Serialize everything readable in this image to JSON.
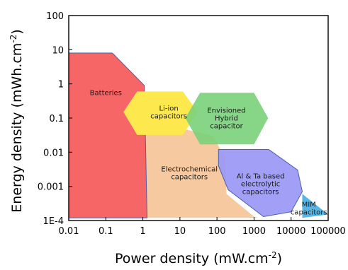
{
  "chart_data": {
    "type": "region",
    "title": "",
    "xlabel": "Power density (mW.cm",
    "xlabel_sup": "-2",
    "xlabel_end": ")",
    "ylabel": "Energy density (mWh.cm",
    "ylabel_sup": "-2",
    "ylabel_end": ")",
    "xscale": "log",
    "yscale": "log",
    "xlim": [
      0.01,
      100000
    ],
    "ylim": [
      0.0001,
      100
    ],
    "x_ticks": [
      {
        "value": 0.01,
        "label": "0.01"
      },
      {
        "value": 0.1,
        "label": "0.1"
      },
      {
        "value": 1,
        "label": "1"
      },
      {
        "value": 10,
        "label": "10"
      },
      {
        "value": 100,
        "label": "100"
      },
      {
        "value": 1000,
        "label": "1000"
      },
      {
        "value": 10000,
        "label": "10000"
      },
      {
        "value": 100000,
        "label": "100000"
      }
    ],
    "y_ticks": [
      {
        "value": 0.0001,
        "label": "1E-4"
      },
      {
        "value": 0.001,
        "label": "0.001"
      },
      {
        "value": 0.01,
        "label": "0.01"
      },
      {
        "value": 0.1,
        "label": "0.1"
      },
      {
        "value": 1,
        "label": "1"
      },
      {
        "value": 10,
        "label": "10"
      },
      {
        "value": 100,
        "label": "100"
      }
    ],
    "grid": false,
    "regions": [
      {
        "name": "Electrochemical capacitors",
        "label_lines": [
          "Electrochemical",
          "capacitors"
        ],
        "label_at": [
          18,
          0.0025
        ],
        "color": "#f6c9a0",
        "stroke": "none",
        "polygon": [
          [
            1,
            0.09
          ],
          [
            80,
            0.03
          ],
          [
            170,
            0.006
          ],
          [
            180,
            0.0006
          ],
          [
            1000,
            0.00013
          ],
          [
            1300,
            0.00012
          ],
          [
            1,
            0.00012
          ]
        ]
      },
      {
        "name": "Batteries",
        "label_lines": [
          "Batteries"
        ],
        "label_at": [
          0.1,
          0.55
        ],
        "color": "#f76666",
        "stroke": "#4a5fa8",
        "polygon": [
          [
            0.01,
            8
          ],
          [
            0.15,
            8
          ],
          [
            1.1,
            0.9
          ],
          [
            1.3,
            0.00012
          ],
          [
            0.01,
            0.00012
          ]
        ]
      },
      {
        "name": "Li-ion capacitors",
        "label_lines": [
          "Li-ion",
          "capacitors"
        ],
        "label_at": [
          5,
          0.15
        ],
        "color": "#fde94d",
        "stroke": "none",
        "polygon": [
          [
            0.7,
            0.6
          ],
          [
            12,
            0.6
          ],
          [
            30,
            0.15
          ],
          [
            12,
            0.032
          ],
          [
            0.7,
            0.032
          ],
          [
            0.3,
            0.15
          ]
        ]
      },
      {
        "name": "Envisioned Hybrid capacitor",
        "label_lines": [
          "Envisioned",
          "Hybrid",
          "capacitor"
        ],
        "label_at": [
          180,
          0.1
        ],
        "color": "#7ad17a",
        "stroke": "none",
        "opacity": 0.9,
        "polygon": [
          [
            35,
            0.55
          ],
          [
            1000,
            0.55
          ],
          [
            2400,
            0.1
          ],
          [
            1000,
            0.017
          ],
          [
            35,
            0.017
          ],
          [
            14,
            0.1
          ]
        ]
      },
      {
        "name": "Al & Ta based electrolytic capacitors",
        "label_lines": [
          "Al & Ta based",
          "electrolytic",
          "capacitors"
        ],
        "label_at": [
          1500,
          0.0012
        ],
        "color": "#9a98f5",
        "stroke": "#4a5fa8",
        "opacity": 0.92,
        "polygon": [
          [
            110,
            0.012
          ],
          [
            2500,
            0.012
          ],
          [
            15000,
            0.003
          ],
          [
            20000,
            0.0007
          ],
          [
            10000,
            0.00018
          ],
          [
            1800,
            0.00013
          ],
          [
            200,
            0.0008
          ],
          [
            110,
            0.004
          ]
        ]
      },
      {
        "name": "MIM capacitors",
        "label_lines": [
          "MIM",
          "capacitors"
        ],
        "label_at": [
          30000,
          0.00023
        ],
        "color": "#55b6e8",
        "stroke": "none",
        "polygon": [
          [
            20000,
            0.0006
          ],
          [
            100000,
            0.00015
          ],
          [
            20000,
            0.00012
          ]
        ]
      }
    ]
  }
}
